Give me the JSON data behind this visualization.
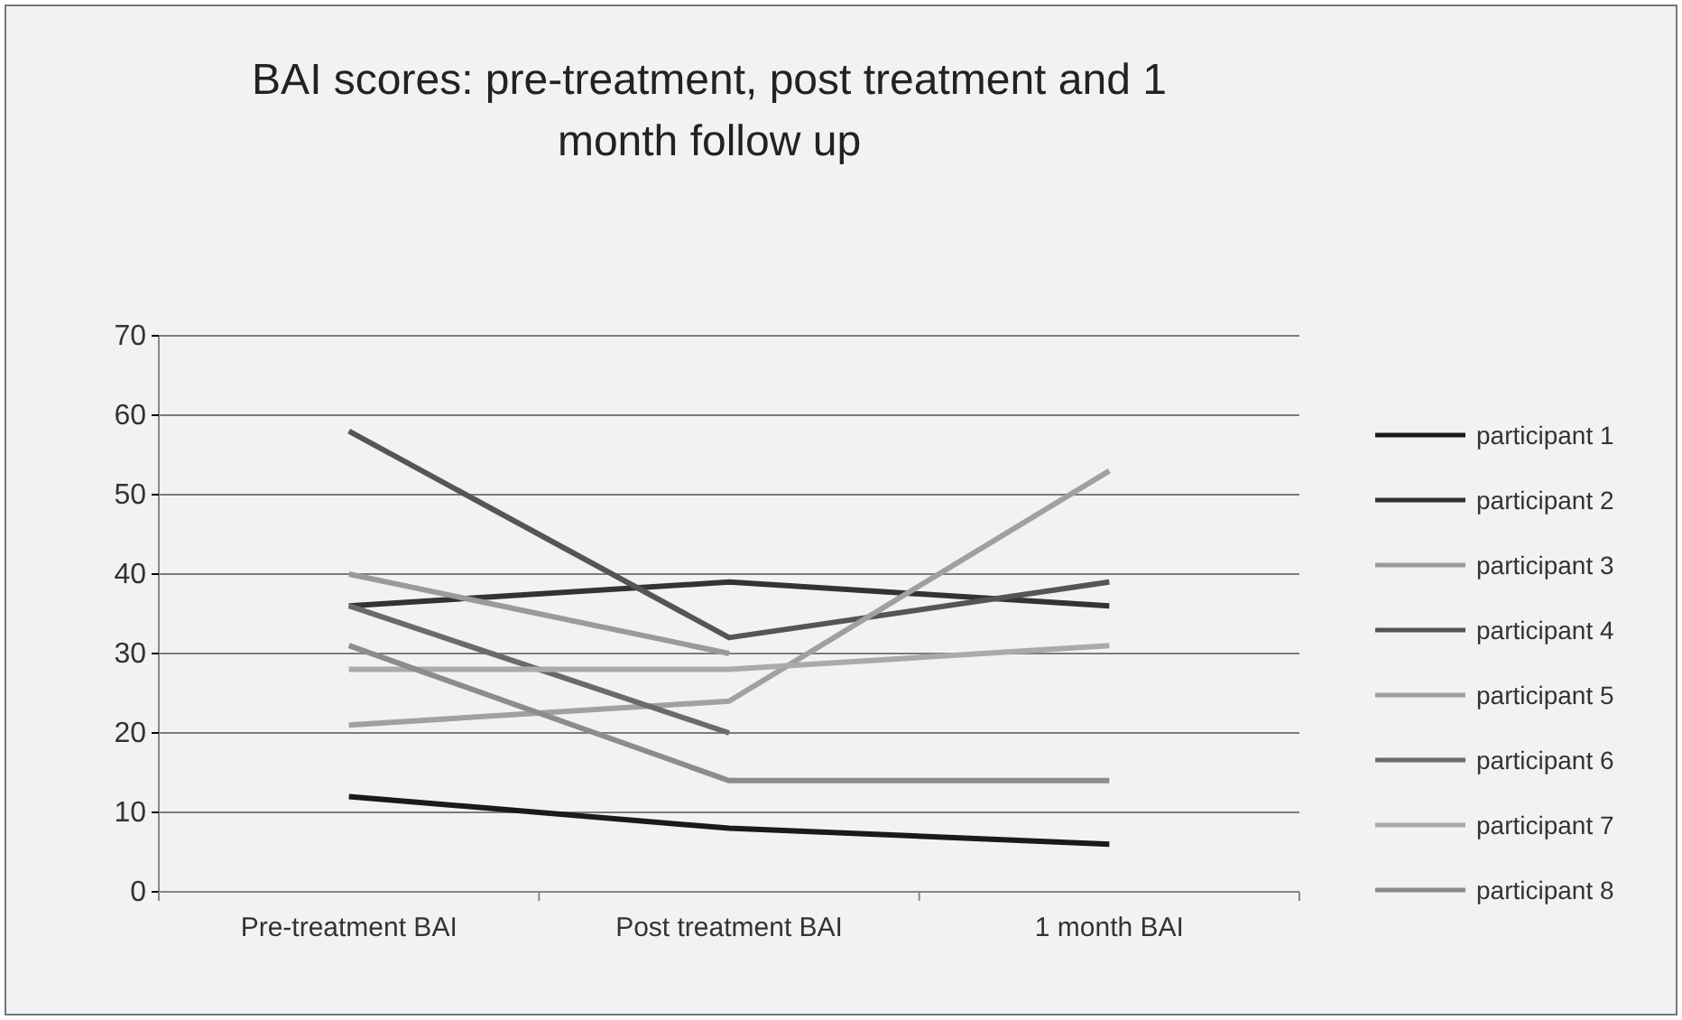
{
  "chart_data": {
    "type": "line",
    "title": "BAI scores: pre-treatment, post treatment and 1 month follow up",
    "categories": [
      "Pre-treatment BAI",
      "Post treatment BAI",
      "1 month BAI"
    ],
    "ylim": [
      0,
      70
    ],
    "yticks": [
      0,
      10,
      20,
      30,
      40,
      50,
      60,
      70
    ],
    "grid": "y",
    "legend": "right",
    "marker": "none",
    "series": [
      {
        "name": "participant 1",
        "color": "#1a1a1a",
        "values": [
          12,
          8,
          6
        ]
      },
      {
        "name": "participant 2",
        "color": "#333333",
        "values": [
          36,
          39,
          36
        ]
      },
      {
        "name": "participant 3",
        "color": "#9a9a9a",
        "values": [
          40,
          30,
          null
        ]
      },
      {
        "name": "participant 4",
        "color": "#555555",
        "values": [
          58,
          32,
          39
        ]
      },
      {
        "name": "participant 5",
        "color": "#a0a0a0",
        "values": [
          21,
          24,
          53
        ]
      },
      {
        "name": "participant 6",
        "color": "#6a6a6a",
        "values": [
          36,
          20,
          null
        ]
      },
      {
        "name": "participant 7",
        "color": "#aaaaaa",
        "values": [
          28,
          28,
          31
        ]
      },
      {
        "name": "participant 8",
        "color": "#8c8c8c",
        "values": [
          31,
          14,
          14
        ]
      }
    ]
  }
}
